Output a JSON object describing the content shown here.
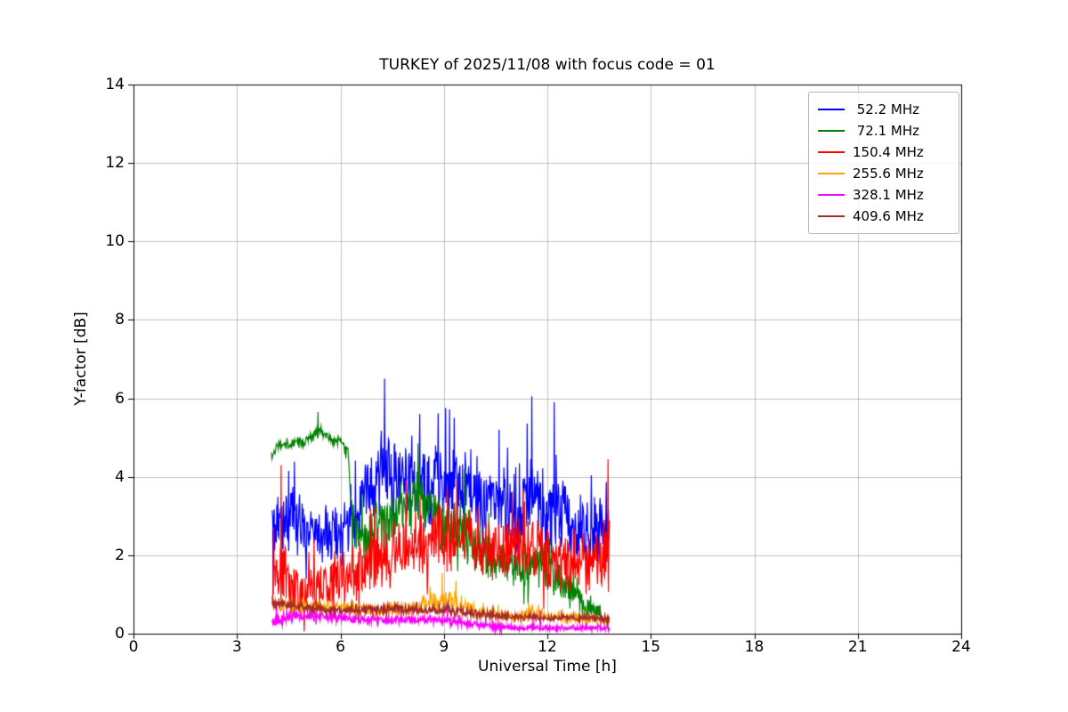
{
  "chart_data": {
    "type": "line",
    "title": "TURKEY of 2025/11/08 with focus code = 01",
    "xlabel": "Universal Time [h]",
    "ylabel": "Y-factor [dB]",
    "xlim": [
      0,
      24
    ],
    "ylim": [
      0,
      14
    ],
    "xticks": [
      0,
      3,
      6,
      9,
      12,
      15,
      18,
      21,
      24
    ],
    "yticks": [
      0,
      2,
      4,
      6,
      8,
      10,
      12,
      14
    ],
    "grid": true,
    "grid_color": "#b0b0b0",
    "legend_position": "upper right",
    "series": [
      {
        "name": " 52.2 MHz",
        "color": "#0000ff",
        "x_start": 4.02,
        "x_end": 13.8,
        "envelope": [
          [
            4.0,
            2.6,
            1.0
          ],
          [
            4.5,
            2.9,
            1.1
          ],
          [
            5.0,
            2.7,
            1.0
          ],
          [
            5.5,
            2.6,
            0.9
          ],
          [
            6.0,
            2.5,
            1.0
          ],
          [
            6.5,
            3.2,
            1.1
          ],
          [
            7.0,
            3.9,
            1.2
          ],
          [
            7.3,
            4.2,
            1.5
          ],
          [
            7.6,
            4.0,
            1.2
          ],
          [
            8.0,
            3.9,
            1.2
          ],
          [
            8.5,
            3.7,
            1.2
          ],
          [
            9.0,
            3.8,
            1.3
          ],
          [
            9.5,
            3.7,
            1.3
          ],
          [
            10.0,
            3.5,
            1.2
          ],
          [
            10.5,
            3.3,
            1.2
          ],
          [
            11.0,
            3.2,
            1.3
          ],
          [
            11.5,
            3.5,
            1.5
          ],
          [
            12.0,
            3.2,
            1.4
          ],
          [
            12.5,
            2.9,
            1.2
          ],
          [
            13.0,
            2.7,
            1.1
          ],
          [
            13.5,
            2.6,
            1.1
          ],
          [
            13.8,
            2.5,
            1.0
          ]
        ],
        "spikes": [
          [
            4.05,
            1.0
          ],
          [
            4.5,
            4.15
          ],
          [
            7.28,
            6.5
          ],
          [
            8.3,
            5.6
          ],
          [
            9.05,
            5.75
          ],
          [
            9.3,
            5.5
          ],
          [
            10.6,
            5.2
          ],
          [
            11.55,
            6.05
          ],
          [
            12.2,
            5.9
          ]
        ]
      },
      {
        "name": " 72.1 MHz",
        "color": "#008000",
        "x_start": 4.0,
        "x_end": 13.6,
        "envelope": [
          [
            4.0,
            4.5,
            0.18
          ],
          [
            4.2,
            4.85,
            0.16
          ],
          [
            5.0,
            4.9,
            0.18
          ],
          [
            5.4,
            5.15,
            0.22
          ],
          [
            5.6,
            4.95,
            0.18
          ],
          [
            6.0,
            4.9,
            0.16
          ],
          [
            6.2,
            4.6,
            0.3
          ],
          [
            6.4,
            2.6,
            0.8
          ],
          [
            6.8,
            2.4,
            0.8
          ],
          [
            7.2,
            2.7,
            0.9
          ],
          [
            7.6,
            2.9,
            0.9
          ],
          [
            8.0,
            3.2,
            1.0
          ],
          [
            8.2,
            3.6,
            1.0
          ],
          [
            8.6,
            3.0,
            0.9
          ],
          [
            9.0,
            2.9,
            0.9
          ],
          [
            9.5,
            2.6,
            0.8
          ],
          [
            10.0,
            2.2,
            0.8
          ],
          [
            10.5,
            1.8,
            0.7
          ],
          [
            11.0,
            1.6,
            0.7
          ],
          [
            11.5,
            1.7,
            0.7
          ],
          [
            12.0,
            1.9,
            0.8
          ],
          [
            12.3,
            1.5,
            0.7
          ],
          [
            12.8,
            0.9,
            0.5
          ],
          [
            13.3,
            0.6,
            0.4
          ],
          [
            13.6,
            0.5,
            0.3
          ]
        ],
        "spikes": [
          [
            5.35,
            5.65
          ],
          [
            6.35,
            1.55
          ],
          [
            8.25,
            4.85
          ],
          [
            9.6,
            4.2
          ]
        ]
      },
      {
        "name": "150.4 MHz",
        "color": "#ff0000",
        "x_start": 4.02,
        "x_end": 13.8,
        "envelope": [
          [
            4.0,
            1.3,
            0.9
          ],
          [
            4.3,
            1.6,
            1.2
          ],
          [
            4.6,
            1.2,
            0.9
          ],
          [
            5.0,
            1.1,
            0.8
          ],
          [
            5.5,
            1.2,
            0.9
          ],
          [
            6.0,
            1.4,
            1.0
          ],
          [
            6.5,
            1.6,
            1.0
          ],
          [
            7.0,
            1.9,
            1.0
          ],
          [
            7.5,
            2.1,
            1.0
          ],
          [
            8.0,
            2.2,
            1.0
          ],
          [
            8.5,
            2.3,
            1.0
          ],
          [
            9.0,
            2.4,
            1.0
          ],
          [
            9.5,
            2.4,
            1.0
          ],
          [
            10.0,
            2.3,
            1.0
          ],
          [
            10.5,
            2.2,
            1.0
          ],
          [
            11.0,
            2.1,
            1.0
          ],
          [
            11.3,
            2.3,
            1.2
          ],
          [
            11.7,
            2.0,
            1.0
          ],
          [
            12.0,
            1.9,
            1.0
          ],
          [
            12.5,
            1.8,
            0.9
          ],
          [
            13.0,
            1.8,
            0.9
          ],
          [
            13.5,
            1.7,
            0.9
          ],
          [
            13.8,
            2.2,
            1.4
          ]
        ],
        "spikes": [
          [
            4.28,
            4.3
          ],
          [
            7.9,
            3.9
          ],
          [
            11.3,
            3.7
          ],
          [
            13.76,
            4.45
          ]
        ]
      },
      {
        "name": "255.6 MHz",
        "color": "#ffa500",
        "x_start": 4.02,
        "x_end": 13.8,
        "envelope": [
          [
            4.0,
            0.75,
            0.2
          ],
          [
            5.0,
            0.7,
            0.2
          ],
          [
            6.0,
            0.65,
            0.2
          ],
          [
            7.0,
            0.6,
            0.2
          ],
          [
            8.0,
            0.65,
            0.25
          ],
          [
            8.8,
            0.8,
            0.35
          ],
          [
            9.2,
            0.85,
            0.35
          ],
          [
            9.6,
            0.7,
            0.3
          ],
          [
            10.0,
            0.55,
            0.2
          ],
          [
            10.5,
            0.5,
            0.18
          ],
          [
            11.0,
            0.45,
            0.15
          ],
          [
            11.5,
            0.5,
            0.2
          ],
          [
            12.0,
            0.45,
            0.15
          ],
          [
            12.5,
            0.4,
            0.15
          ],
          [
            13.0,
            0.38,
            0.15
          ],
          [
            13.8,
            0.35,
            0.15
          ]
        ],
        "spikes": [
          [
            8.6,
            1.2
          ],
          [
            8.95,
            1.55
          ],
          [
            9.35,
            1.35
          ]
        ]
      },
      {
        "name": "328.1 MHz",
        "color": "#ff00ff",
        "x_start": 4.02,
        "x_end": 13.8,
        "envelope": [
          [
            4.0,
            0.3,
            0.15
          ],
          [
            4.5,
            0.42,
            0.18
          ],
          [
            5.0,
            0.45,
            0.18
          ],
          [
            5.5,
            0.45,
            0.15
          ],
          [
            6.0,
            0.4,
            0.15
          ],
          [
            6.5,
            0.35,
            0.13
          ],
          [
            7.0,
            0.35,
            0.13
          ],
          [
            7.5,
            0.35,
            0.13
          ],
          [
            8.0,
            0.35,
            0.13
          ],
          [
            8.5,
            0.35,
            0.13
          ],
          [
            9.0,
            0.35,
            0.15
          ],
          [
            9.5,
            0.3,
            0.12
          ],
          [
            10.0,
            0.22,
            0.1
          ],
          [
            10.5,
            0.18,
            0.1
          ],
          [
            11.0,
            0.15,
            0.08
          ],
          [
            11.5,
            0.15,
            0.08
          ],
          [
            12.0,
            0.15,
            0.08
          ],
          [
            12.5,
            0.15,
            0.08
          ],
          [
            13.0,
            0.15,
            0.08
          ],
          [
            13.8,
            0.15,
            0.1
          ]
        ],
        "spikes": [
          [
            4.15,
            0.8
          ],
          [
            9.1,
            0.75
          ],
          [
            11.8,
            0.6
          ]
        ]
      },
      {
        "name": "409.6 MHz",
        "color": "#a52a2a",
        "x_start": 4.02,
        "x_end": 13.8,
        "envelope": [
          [
            4.0,
            0.75,
            0.12
          ],
          [
            4.5,
            0.72,
            0.12
          ],
          [
            5.0,
            0.68,
            0.12
          ],
          [
            5.5,
            0.62,
            0.12
          ],
          [
            6.0,
            0.58,
            0.12
          ],
          [
            6.5,
            0.6,
            0.12
          ],
          [
            7.0,
            0.62,
            0.13
          ],
          [
            7.5,
            0.65,
            0.13
          ],
          [
            8.0,
            0.62,
            0.13
          ],
          [
            8.5,
            0.6,
            0.13
          ],
          [
            9.0,
            0.62,
            0.13
          ],
          [
            9.5,
            0.58,
            0.12
          ],
          [
            10.0,
            0.5,
            0.12
          ],
          [
            10.5,
            0.45,
            0.1
          ],
          [
            11.0,
            0.42,
            0.1
          ],
          [
            11.5,
            0.42,
            0.1
          ],
          [
            12.0,
            0.4,
            0.1
          ],
          [
            12.5,
            0.42,
            0.1
          ],
          [
            13.0,
            0.4,
            0.1
          ],
          [
            13.8,
            0.38,
            0.12
          ]
        ],
        "spikes": []
      }
    ]
  }
}
